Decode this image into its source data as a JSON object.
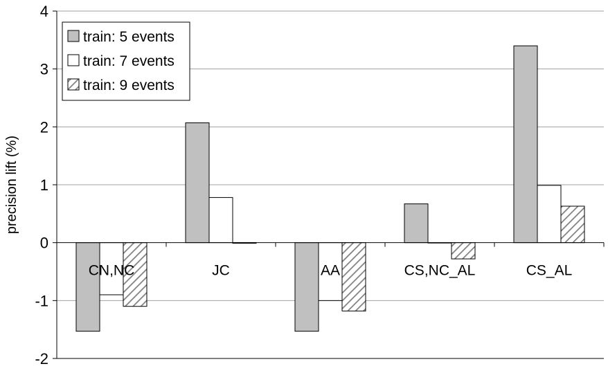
{
  "chart_data": {
    "type": "bar",
    "title": "",
    "xlabel": "",
    "ylabel": "precision lift (%)",
    "ylim": [
      -2,
      4
    ],
    "yticks": [
      -2,
      -1,
      0,
      1,
      2,
      3,
      4
    ],
    "grid": true,
    "legend_position": "top-left",
    "categories": [
      "CN,NC",
      "JC",
      "AA",
      "CS,NC_AL",
      "CS_AL"
    ],
    "series": [
      {
        "name": "train: 5 events",
        "fill": "#c0c0c0",
        "pattern": "solid",
        "values": [
          -1.53,
          2.07,
          -1.53,
          0.67,
          3.4
        ]
      },
      {
        "name": "train: 7 events",
        "fill": "#ffffff",
        "pattern": "solid",
        "values": [
          -0.9,
          0.78,
          -1.0,
          0.0,
          0.99
        ]
      },
      {
        "name": "train: 9 events",
        "fill": "#ffffff",
        "pattern": "diagonal-hatch",
        "values": [
          -1.1,
          -0.01,
          -1.18,
          -0.28,
          0.63
        ]
      }
    ]
  }
}
